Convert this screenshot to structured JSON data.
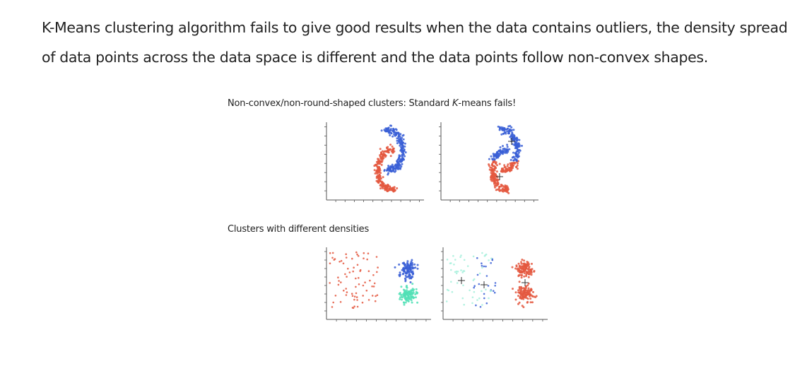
{
  "paragraph": "K-Means clustering algorithm fails to give good results when the data contains outliers, the density spread of data points across the data space is different and the data points follow non-convex shapes.",
  "figure": {
    "caption_nonconvex_before": "Non-convex/non-round-shaped clusters: Standard ",
    "caption_nonconvex_k": "K",
    "caption_nonconvex_after": "-means fails!",
    "caption_densities": "Clusters with different densities"
  },
  "colors": {
    "red": "#e4583f",
    "blue": "#3a5fd6",
    "green": "#52e0b6",
    "light_green": "#a6f0dc",
    "axis": "#555555"
  }
}
